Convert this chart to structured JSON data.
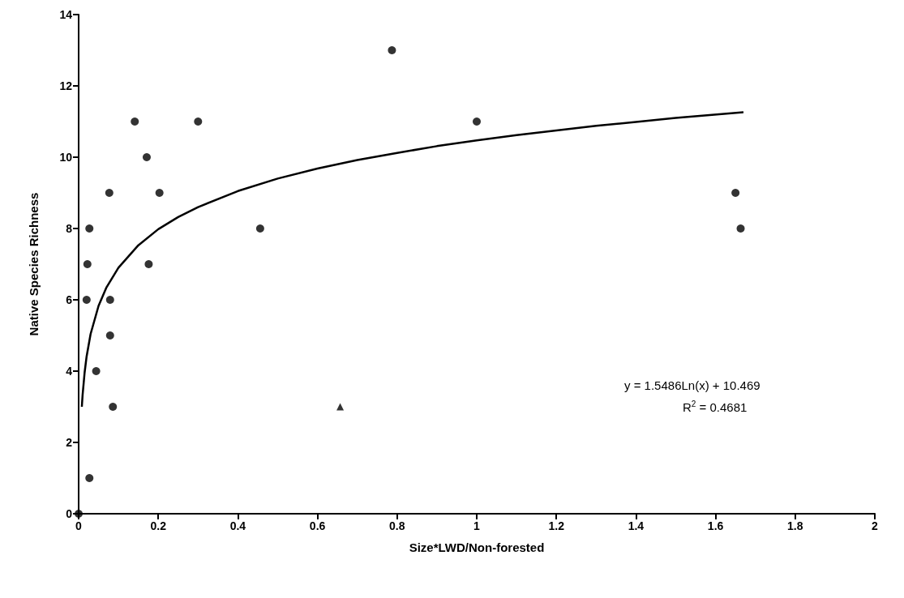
{
  "chart_data": {
    "type": "scatter",
    "xlabel": "Size*LWD/Non-forested",
    "ylabel": "Native Species Richness",
    "xlim": [
      0,
      2
    ],
    "xticks": [
      0,
      0.2,
      0.4,
      0.6,
      0.8,
      1,
      1.2,
      1.4,
      1.6,
      1.8,
      2
    ],
    "ylim": [
      0,
      14
    ],
    "yticks": [
      0,
      2,
      4,
      6,
      8,
      10,
      12,
      14
    ],
    "grid": false,
    "series": [
      {
        "marker": "circle",
        "color": "#000000",
        "x": [
          0,
          0.027,
          0.044,
          0.086,
          0.079,
          0.079,
          0.02,
          0.022,
          0.176,
          0.027,
          0.077,
          0.203,
          0.171,
          0.141,
          0.3,
          0.456,
          0.787,
          1.0,
          1.65,
          1.663
        ],
        "values": [
          0,
          1,
          4,
          3,
          5,
          6,
          6,
          7,
          7,
          8,
          9,
          9,
          10,
          11,
          11,
          8,
          13,
          11,
          9,
          8
        ]
      },
      {
        "marker": "triangle",
        "color": "#000000",
        "x": [
          0.657
        ],
        "values": [
          3
        ]
      },
      {
        "type": "line",
        "marker": "none",
        "line_style": "solid",
        "color": "#000000",
        "x": [
          0.008,
          0.01,
          0.015,
          0.02,
          0.03,
          0.05,
          0.07,
          0.1,
          0.15,
          0.2,
          0.25,
          0.3,
          0.4,
          0.5,
          0.6,
          0.7,
          0.8,
          0.9,
          1.0,
          1.1,
          1.2,
          1.3,
          1.4,
          1.5,
          1.67
        ],
        "values": [
          3.0,
          3.34,
          3.96,
          4.41,
          5.04,
          5.83,
          6.35,
          6.9,
          7.53,
          7.98,
          8.32,
          8.6,
          9.05,
          9.4,
          9.68,
          9.92,
          10.12,
          10.31,
          10.47,
          10.62,
          10.75,
          10.88,
          10.99,
          11.1,
          11.26
        ]
      }
    ],
    "annotations": [
      "y = 1.5486Ln(x) + 10.469",
      "R$^{2}$ = 0.4681"
    ]
  }
}
